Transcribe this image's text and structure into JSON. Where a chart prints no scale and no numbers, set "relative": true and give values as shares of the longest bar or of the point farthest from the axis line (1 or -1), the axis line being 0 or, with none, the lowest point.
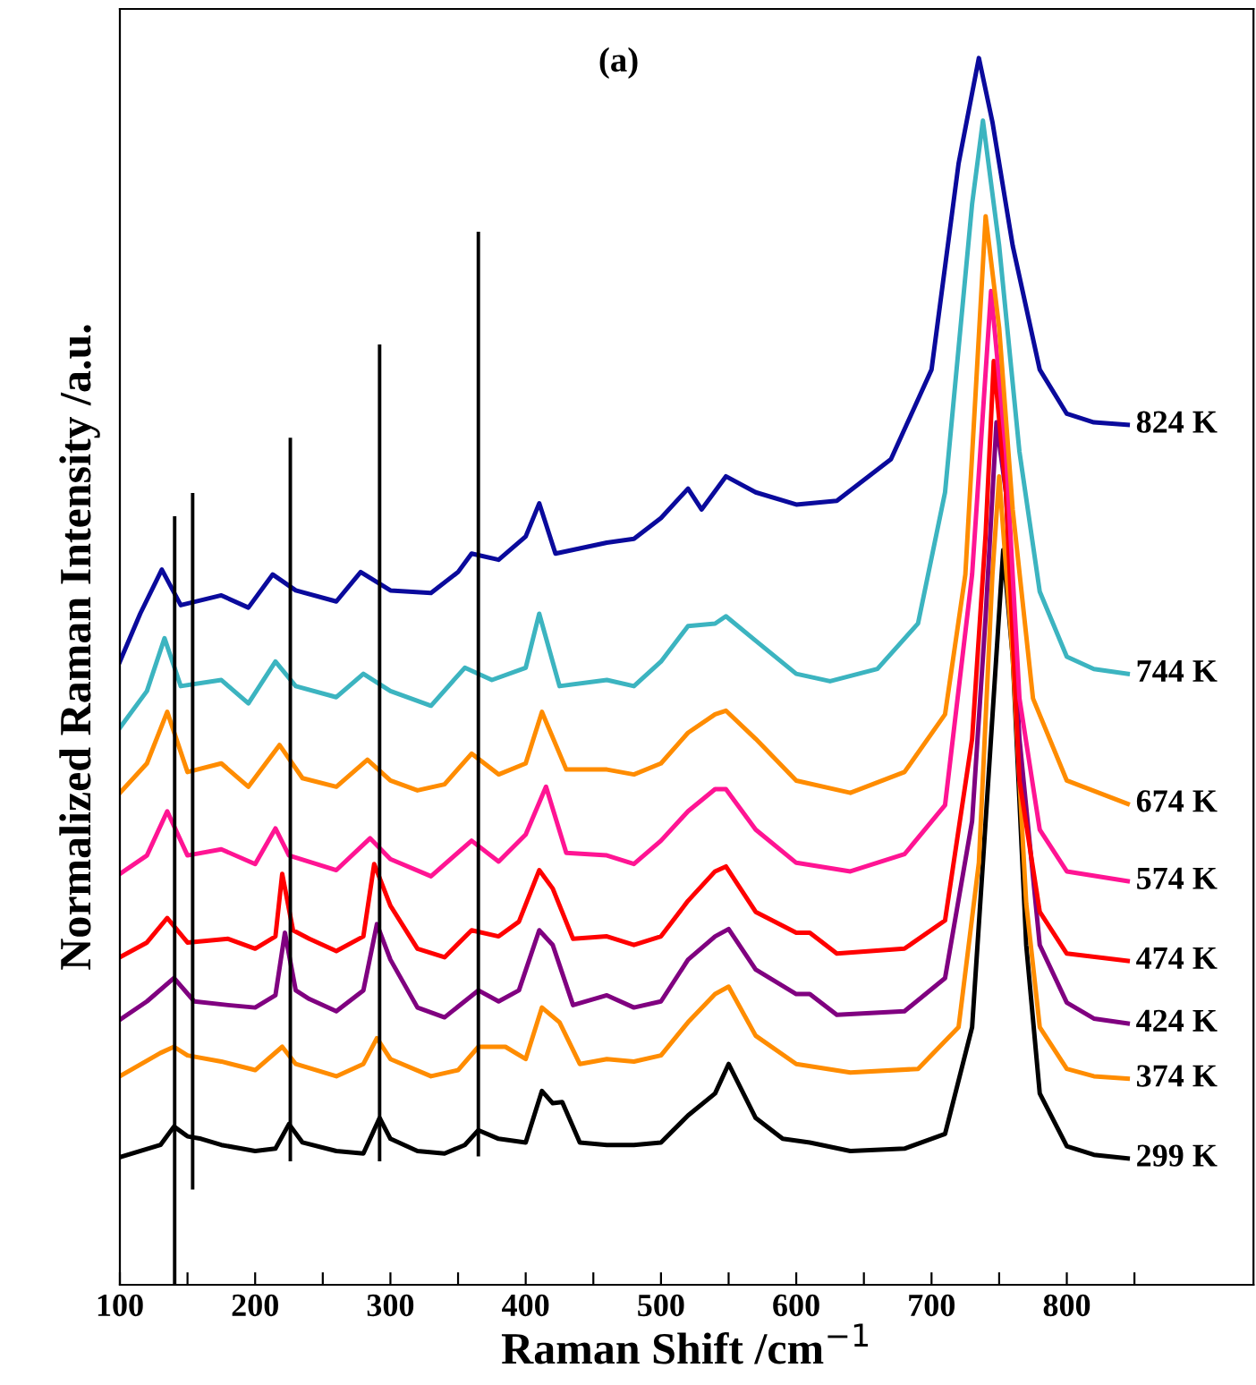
{
  "chart_data": {
    "type": "line",
    "relative": true,
    "annotations": [
      "(a)"
    ],
    "xlabel": "Raman Shift /cm$^{−1}$",
    "ylabel": "Normalized Raman Intensity /a.u.",
    "xlim": [
      100,
      938
    ],
    "xticks": [
      100,
      {
        "value": 150,
        "label": null
      },
      200,
      {
        "value": 250,
        "label": null
      },
      300,
      {
        "value": 350,
        "label": null
      },
      400,
      {
        "value": 450,
        "label": null
      },
      500,
      {
        "value": 550,
        "label": null
      },
      600,
      {
        "value": 650,
        "label": null
      },
      700,
      {
        "value": 750,
        "label": null
      },
      800,
      {
        "value": 850,
        "label": null
      }
    ],
    "grid": false,
    "marker": "none",
    "line_style": "solid",
    "series": [
      {
        "name": "299 K",
        "color": "#000000",
        "x": [
          100,
          130,
          140,
          150,
          160,
          175,
          200,
          215,
          225,
          235,
          260,
          280,
          292,
          300,
          320,
          340,
          355,
          365,
          380,
          400,
          412,
          420,
          427,
          440,
          460,
          480,
          500,
          520,
          540,
          550,
          570,
          590,
          610,
          640,
          680,
          710,
          730,
          740,
          753,
          760,
          770,
          780,
          800,
          820,
          845
        ],
        "values": [
          0.104,
          0.114,
          0.129,
          0.121,
          0.119,
          0.114,
          0.109,
          0.111,
          0.131,
          0.116,
          0.109,
          0.107,
          0.136,
          0.119,
          0.109,
          0.107,
          0.114,
          0.126,
          0.119,
          0.116,
          0.158,
          0.148,
          0.149,
          0.116,
          0.114,
          0.114,
          0.116,
          0.138,
          0.156,
          0.18,
          0.136,
          0.119,
          0.116,
          0.109,
          0.111,
          0.123,
          0.21,
          0.378,
          0.599,
          0.512,
          0.277,
          0.156,
          0.113,
          0.106,
          0.103
        ]
      },
      {
        "name": "374 K",
        "color": "#ff8c00",
        "x": [
          100,
          130,
          140,
          150,
          175,
          200,
          220,
          230,
          260,
          280,
          290,
          300,
          330,
          350,
          365,
          385,
          400,
          412,
          425,
          440,
          460,
          480,
          500,
          520,
          540,
          550,
          570,
          600,
          640,
          690,
          720,
          735,
          745,
          750,
          760,
          770,
          780,
          800,
          820,
          845
        ],
        "values": [
          0.17,
          0.189,
          0.194,
          0.187,
          0.182,
          0.175,
          0.194,
          0.18,
          0.17,
          0.18,
          0.201,
          0.184,
          0.17,
          0.175,
          0.194,
          0.194,
          0.184,
          0.226,
          0.214,
          0.18,
          0.184,
          0.182,
          0.187,
          0.214,
          0.237,
          0.243,
          0.203,
          0.18,
          0.173,
          0.176,
          0.21,
          0.344,
          0.579,
          0.659,
          0.512,
          0.311,
          0.21,
          0.176,
          0.17,
          0.168
        ]
      },
      {
        "name": "424 K",
        "color": "#800080",
        "x": [
          100,
          120,
          140,
          155,
          180,
          200,
          215,
          222,
          230,
          240,
          260,
          280,
          290,
          300,
          320,
          340,
          365,
          380,
          395,
          410,
          420,
          435,
          460,
          480,
          500,
          520,
          540,
          550,
          570,
          600,
          610,
          630,
          680,
          710,
          730,
          740,
          748,
          755,
          765,
          780,
          800,
          820,
          845
        ],
        "values": [
          0.216,
          0.231,
          0.25,
          0.231,
          0.228,
          0.226,
          0.236,
          0.287,
          0.24,
          0.233,
          0.223,
          0.24,
          0.294,
          0.265,
          0.226,
          0.218,
          0.24,
          0.231,
          0.24,
          0.289,
          0.277,
          0.228,
          0.236,
          0.226,
          0.231,
          0.265,
          0.284,
          0.29,
          0.257,
          0.237,
          0.237,
          0.22,
          0.223,
          0.25,
          0.378,
          0.545,
          0.703,
          0.646,
          0.445,
          0.277,
          0.23,
          0.217,
          0.213
        ]
      },
      {
        "name": "474 K",
        "color": "#ff0000",
        "x": [
          100,
          120,
          135,
          150,
          180,
          200,
          215,
          220,
          228,
          240,
          260,
          280,
          288,
          300,
          320,
          340,
          360,
          380,
          395,
          410,
          420,
          435,
          460,
          480,
          500,
          520,
          540,
          548,
          570,
          600,
          610,
          630,
          680,
          710,
          730,
          740,
          746,
          755,
          765,
          780,
          800,
          845
        ],
        "values": [
          0.267,
          0.279,
          0.299,
          0.279,
          0.282,
          0.274,
          0.284,
          0.335,
          0.289,
          0.282,
          0.272,
          0.284,
          0.343,
          0.309,
          0.274,
          0.267,
          0.289,
          0.284,
          0.296,
          0.338,
          0.323,
          0.282,
          0.284,
          0.277,
          0.284,
          0.313,
          0.337,
          0.341,
          0.304,
          0.287,
          0.287,
          0.27,
          0.274,
          0.297,
          0.445,
          0.612,
          0.753,
          0.646,
          0.411,
          0.304,
          0.27,
          0.264
        ]
      },
      {
        "name": "574 K",
        "color": "#ff1493",
        "x": [
          100,
          120,
          135,
          150,
          175,
          200,
          215,
          225,
          260,
          285,
          300,
          330,
          360,
          380,
          400,
          415,
          430,
          460,
          480,
          500,
          520,
          540,
          548,
          570,
          600,
          640,
          680,
          710,
          730,
          744,
          755,
          765,
          780,
          800,
          845
        ],
        "values": [
          0.335,
          0.35,
          0.386,
          0.35,
          0.355,
          0.343,
          0.372,
          0.35,
          0.338,
          0.364,
          0.347,
          0.333,
          0.362,
          0.345,
          0.367,
          0.406,
          0.352,
          0.35,
          0.343,
          0.362,
          0.386,
          0.404,
          0.404,
          0.371,
          0.344,
          0.337,
          0.351,
          0.391,
          0.579,
          0.81,
          0.679,
          0.478,
          0.371,
          0.337,
          0.329
        ]
      },
      {
        "name": "674 K",
        "color": "#ff8c00",
        "x": [
          100,
          120,
          135,
          150,
          175,
          195,
          218,
          235,
          260,
          283,
          300,
          320,
          340,
          360,
          380,
          400,
          412,
          430,
          460,
          480,
          500,
          520,
          540,
          548,
          570,
          600,
          640,
          680,
          710,
          725,
          740,
          750,
          760,
          775,
          800,
          845
        ],
        "values": [
          0.401,
          0.425,
          0.467,
          0.418,
          0.425,
          0.406,
          0.44,
          0.413,
          0.406,
          0.428,
          0.411,
          0.403,
          0.408,
          0.433,
          0.416,
          0.425,
          0.467,
          0.42,
          0.42,
          0.416,
          0.425,
          0.45,
          0.465,
          0.468,
          0.445,
          0.411,
          0.401,
          0.418,
          0.465,
          0.579,
          0.871,
          0.78,
          0.632,
          0.478,
          0.411,
          0.392
        ]
      },
      {
        "name": "744 K",
        "color": "#3cb4c0",
        "x": [
          100,
          120,
          133,
          145,
          175,
          195,
          215,
          230,
          260,
          280,
          300,
          330,
          355,
          375,
          400,
          410,
          425,
          460,
          480,
          500,
          520,
          540,
          548,
          570,
          600,
          625,
          660,
          690,
          710,
          730,
          738,
          750,
          765,
          780,
          800,
          820,
          845
        ],
        "values": [
          0.454,
          0.484,
          0.527,
          0.488,
          0.493,
          0.474,
          0.508,
          0.488,
          0.479,
          0.498,
          0.484,
          0.472,
          0.503,
          0.493,
          0.503,
          0.547,
          0.488,
          0.493,
          0.488,
          0.508,
          0.537,
          0.539,
          0.545,
          0.525,
          0.498,
          0.492,
          0.502,
          0.539,
          0.646,
          0.881,
          0.949,
          0.847,
          0.679,
          0.565,
          0.512,
          0.502,
          0.498
        ]
      },
      {
        "name": "824 K",
        "color": "#0a0a9c",
        "x": [
          100,
          115,
          131,
          145,
          175,
          195,
          213,
          230,
          260,
          278,
          300,
          330,
          350,
          360,
          380,
          400,
          410,
          422,
          460,
          480,
          500,
          520,
          530,
          548,
          570,
          600,
          630,
          670,
          700,
          720,
          735,
          745,
          760,
          780,
          800,
          820,
          845
        ],
        "values": [
          0.508,
          0.547,
          0.583,
          0.554,
          0.562,
          0.552,
          0.579,
          0.566,
          0.557,
          0.581,
          0.566,
          0.564,
          0.581,
          0.596,
          0.591,
          0.61,
          0.637,
          0.596,
          0.605,
          0.608,
          0.625,
          0.649,
          0.632,
          0.659,
          0.646,
          0.636,
          0.639,
          0.673,
          0.746,
          0.914,
          1.0,
          0.948,
          0.847,
          0.746,
          0.71,
          0.703,
          0.701
        ]
      },
      {
        "color": "#000000",
        "x": [
          140.5,
          140.5
        ],
        "values": [
          0,
          0.625
        ]
      },
      {
        "color": "#000000",
        "x": [
          153.8,
          153.8
        ],
        "values": [
          0.079,
          0.644
        ]
      },
      {
        "color": "#000000",
        "x": [
          226,
          226
        ],
        "values": [
          0.102,
          0.689
        ]
      },
      {
        "color": "#000000",
        "x": [
          292,
          292
        ],
        "values": [
          0.102,
          0.765
        ]
      },
      {
        "color": "#000000",
        "x": [
          365,
          365
        ],
        "values": [
          0.106,
          0.857
        ]
      }
    ]
  }
}
